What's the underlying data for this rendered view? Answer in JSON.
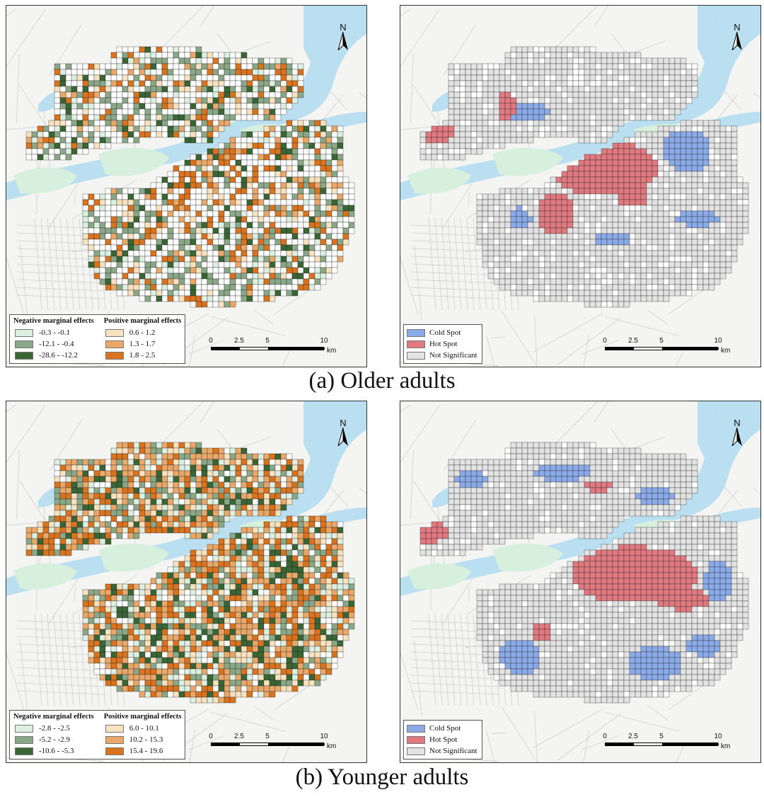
{
  "captions": {
    "a": "(a) Older adults",
    "b": "(b) Younger adults"
  },
  "north_label": "N",
  "scale": {
    "labels": [
      "0",
      "2.5",
      "5",
      "10"
    ],
    "unit": "km"
  },
  "colors": {
    "water": "#b9dff0",
    "park": "#d7efdd",
    "base": "#f4f4f2",
    "road": "#cfcfcf",
    "cold": "#8aaae8",
    "hot": "#e07a80",
    "ns": "#e3e3e3",
    "neg_light": "#dcefe0",
    "neg_mid": "#8aa887",
    "neg_dark": "#3a6535",
    "pos_light": "#f8e2bf",
    "pos_mid": "#e9a86a",
    "pos_dark": "#d9731f"
  },
  "older": {
    "legend": {
      "neg_title": "Negative marginal effects",
      "pos_title": "Positive marginal effects",
      "neg": [
        "-0.3 - -0.1",
        "-12.1 - -0.4",
        "-28.6 - -12.2"
      ],
      "pos": [
        "0.6 - 1.2",
        "1.3 - 1.7",
        "1.8 - 2.5"
      ]
    }
  },
  "younger": {
    "legend": {
      "neg_title": "Negative marginal effects",
      "pos_title": "Positive marginal effects",
      "neg": [
        "-2.8 - -2.5",
        "-5.2 - -2.9",
        "-10.6 - -5.3"
      ],
      "pos": [
        "6.0 - 10.1",
        "10.2 - 15.3",
        "15.4 - 19.6"
      ]
    }
  },
  "hotspot_legend": {
    "cold": "Cold Spot",
    "hot": "Hot Spot",
    "ns": "Not Significant"
  }
}
